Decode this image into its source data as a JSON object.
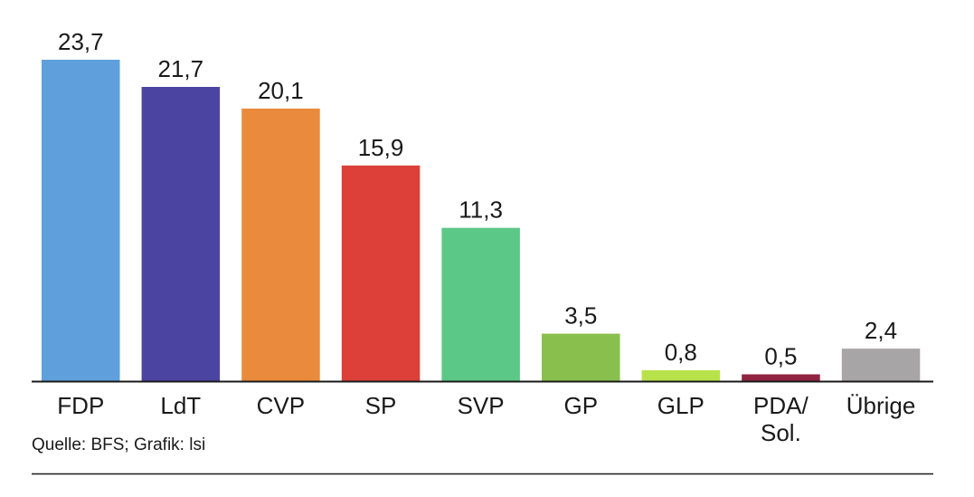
{
  "chart_data": {
    "type": "bar",
    "categories": [
      "FDP",
      "LdT",
      "CVP",
      "SP",
      "SVP",
      "GP",
      "GLP",
      "PDA/\nSol.",
      "Übrige"
    ],
    "values": [
      23.7,
      21.7,
      20.1,
      15.9,
      11.3,
      3.5,
      0.8,
      0.5,
      2.4
    ],
    "value_labels": [
      "23,7",
      "21,7",
      "20,1",
      "15,9",
      "11,3",
      "3,5",
      "0,8",
      "0,5",
      "2,4"
    ],
    "colors": [
      "#5fa0dc",
      "#4b44a0",
      "#e98a3c",
      "#dc4039",
      "#5cc887",
      "#89bf4c",
      "#b8e24a",
      "#8f2340",
      "#a7a5a6"
    ],
    "title": "",
    "xlabel": "",
    "ylabel": "",
    "ylim": [
      0,
      23.7
    ],
    "grid": false,
    "legend": "none"
  },
  "source": "Quelle: BFS; Grafik: lsi"
}
